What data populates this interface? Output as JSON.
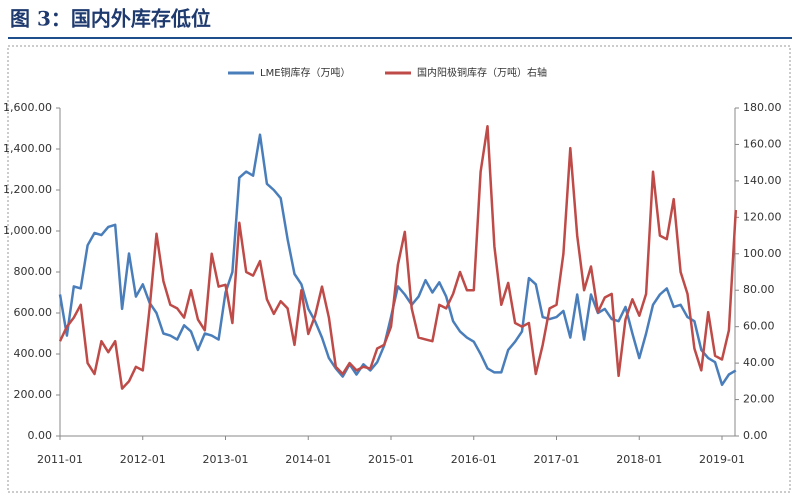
{
  "chart_data": {
    "type": "line",
    "title": "图 3：国内外库存低位",
    "categories": [
      "2011-01",
      null,
      null,
      null,
      null,
      null,
      null,
      null,
      null,
      null,
      null,
      null,
      "2012-01",
      null,
      null,
      null,
      null,
      null,
      null,
      null,
      null,
      null,
      null,
      null,
      "2013-01",
      null,
      null,
      null,
      null,
      null,
      null,
      null,
      null,
      null,
      null,
      null,
      "2014-01",
      null,
      null,
      null,
      null,
      null,
      null,
      null,
      null,
      null,
      null,
      null,
      "2015-01",
      null,
      null,
      null,
      null,
      null,
      null,
      null,
      null,
      null,
      null,
      null,
      "2016-01",
      null,
      null,
      null,
      null,
      null,
      null,
      null,
      null,
      null,
      null,
      null,
      "2017-01",
      null,
      null,
      null,
      null,
      null,
      null,
      null,
      null,
      null,
      null,
      null,
      "2018-01",
      null,
      null,
      null,
      null,
      null,
      null,
      null,
      null,
      null,
      null,
      null,
      "2019-01",
      null,
      null
    ],
    "series": [
      {
        "name": "LME铜库存（万吨）",
        "color": "#4a7ebb",
        "values": [
          690,
          490,
          730,
          720,
          930,
          990,
          980,
          1020,
          1030,
          620,
          890,
          680,
          740,
          650,
          600,
          500,
          490,
          470,
          540,
          510,
          420,
          500,
          490,
          470,
          700,
          800,
          1260,
          1290,
          1270,
          1470,
          1230,
          1200,
          1160,
          960,
          790,
          740,
          620,
          560,
          480,
          380,
          330,
          290,
          350,
          300,
          350,
          320,
          360,
          440,
          580,
          730,
          690,
          640,
          680,
          760,
          700,
          750,
          680,
          560,
          510,
          480,
          460,
          400,
          330,
          310,
          310,
          420,
          460,
          510,
          770,
          740,
          580,
          570,
          580,
          610,
          480,
          690,
          470,
          690,
          600,
          620,
          570,
          560,
          630,
          500,
          380,
          500,
          640,
          690,
          720,
          630,
          640,
          580,
          560,
          420,
          380,
          360,
          250,
          300,
          320
        ]
      },
      {
        "name": "国内阳极铜库存（万吨）右轴",
        "color": "#be4b48",
        "axis": "y2",
        "values": [
          52,
          60,
          65,
          72,
          40,
          34,
          52,
          46,
          52,
          26,
          30,
          38,
          36,
          70,
          111,
          85,
          72,
          70,
          65,
          80,
          64,
          58,
          100,
          82,
          83,
          62,
          117,
          90,
          88,
          96,
          75,
          67,
          74,
          70,
          50,
          80,
          56,
          66,
          82,
          65,
          38,
          34,
          40,
          36,
          38,
          37,
          48,
          50,
          60,
          94,
          112,
          70,
          54,
          53,
          52,
          72,
          70,
          78,
          90,
          80,
          80,
          145,
          170,
          104,
          72,
          84,
          62,
          60,
          62,
          34,
          50,
          70,
          72,
          100,
          158,
          110,
          80,
          93,
          68,
          76,
          78,
          33,
          64,
          75,
          66,
          78,
          145,
          110,
          108,
          130,
          90,
          78,
          48,
          36,
          68,
          44,
          42,
          58,
          124
        ]
      }
    ],
    "ylim": [
      0,
      1600
    ],
    "yticks": [
      {
        "value": 0,
        "label": "0.00"
      },
      {
        "value": 200,
        "label": "200.00"
      },
      {
        "value": 400,
        "label": "400.00"
      },
      {
        "value": 600,
        "label": "600.00"
      },
      {
        "value": 800,
        "label": "800.00"
      },
      {
        "value": 1000,
        "label": "1,000.00"
      },
      {
        "value": 1200,
        "label": "1,200.00"
      },
      {
        "value": 1400,
        "label": "1,400.00"
      },
      {
        "value": 1600,
        "label": "1,600.00"
      }
    ],
    "y2lim": [
      0,
      180
    ],
    "y2ticks": [
      {
        "value": 0,
        "label": "0.00"
      },
      {
        "value": 20,
        "label": "20.00"
      },
      {
        "value": 40,
        "label": "40.00"
      },
      {
        "value": 60,
        "label": "60.00"
      },
      {
        "value": 80,
        "label": "80.00"
      },
      {
        "value": 100,
        "label": "100.00"
      },
      {
        "value": 120,
        "label": "120.00"
      },
      {
        "value": 140,
        "label": "140.00"
      },
      {
        "value": 160,
        "label": "160.00"
      },
      {
        "value": 180,
        "label": "180.00"
      }
    ],
    "grid": false
  }
}
